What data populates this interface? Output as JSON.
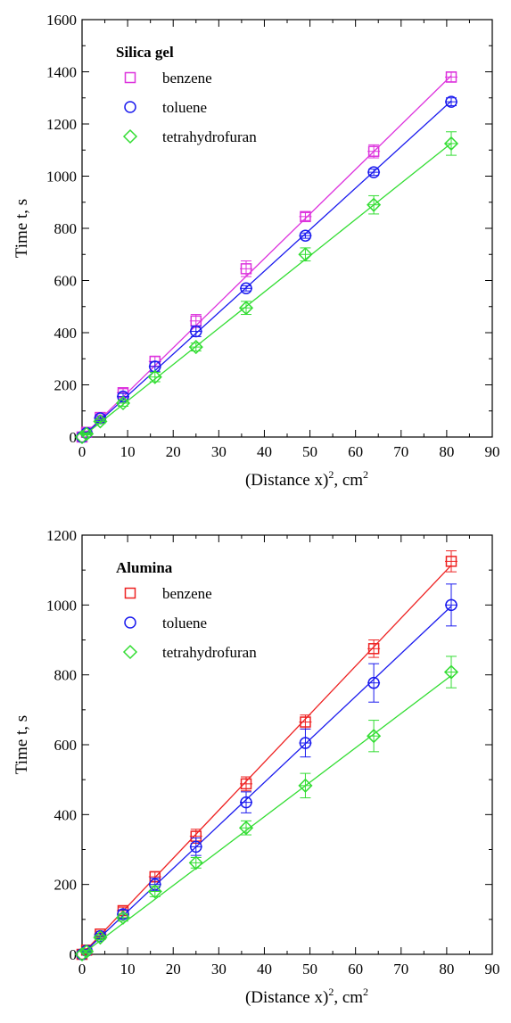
{
  "chart_data": [
    {
      "type": "scatter",
      "title": "",
      "panel_label": "Silica gel",
      "xlabel": "(Distance x)",
      "xlabel_sup": "2",
      "xlabel_unit": ", cm",
      "xlabel_unit_sup": "2",
      "ylabel": "Time t, s",
      "xlim": [
        0,
        90
      ],
      "ylim": [
        0,
        1600
      ],
      "xticks": [
        0,
        10,
        20,
        30,
        40,
        50,
        60,
        70,
        80,
        90
      ],
      "yticks": [
        0,
        200,
        400,
        600,
        800,
        1000,
        1200,
        1400,
        1600
      ],
      "x": [
        0,
        1,
        4,
        9,
        16,
        25,
        36,
        49,
        64,
        81
      ],
      "legend_position": "top-left",
      "series": [
        {
          "name": "benzene",
          "marker": "square",
          "color": "#dd33dd",
          "values": [
            0,
            18,
            75,
            170,
            290,
            445,
            645,
            845,
            1095,
            1380
          ],
          "errors": [
            0,
            5,
            10,
            15,
            20,
            25,
            30,
            15,
            25,
            20
          ],
          "fit_slope": 17.1
        },
        {
          "name": "toluene",
          "marker": "circle",
          "color": "#1a1aee",
          "values": [
            0,
            15,
            72,
            155,
            270,
            405,
            570,
            772,
            1015,
            1285
          ],
          "errors": [
            0,
            4,
            8,
            12,
            18,
            20,
            10,
            10,
            12,
            15
          ],
          "fit_slope": 15.9
        },
        {
          "name": "tetrahydrofuran",
          "marker": "diamond",
          "color": "#33dd33",
          "values": [
            0,
            12,
            60,
            130,
            230,
            345,
            495,
            700,
            890,
            1125
          ],
          "errors": [
            0,
            4,
            8,
            12,
            18,
            15,
            25,
            25,
            35,
            45
          ],
          "fit_slope": 13.9
        }
      ]
    },
    {
      "type": "scatter",
      "title": "",
      "panel_label": "Alumina",
      "xlabel": "(Distance x)",
      "xlabel_sup": "2",
      "xlabel_unit": ", cm",
      "xlabel_unit_sup": "2",
      "ylabel": "Time t, s",
      "xlim": [
        0,
        90
      ],
      "ylim": [
        0,
        1200
      ],
      "xticks": [
        0,
        10,
        20,
        30,
        40,
        50,
        60,
        70,
        80,
        90
      ],
      "yticks": [
        0,
        200,
        400,
        600,
        800,
        1000,
        1200
      ],
      "x": [
        0,
        1,
        4,
        9,
        16,
        25,
        36,
        49,
        64,
        81
      ],
      "legend_position": "top-left",
      "series": [
        {
          "name": "benzene",
          "marker": "square",
          "color": "#ee2222",
          "values": [
            0,
            12,
            58,
            125,
            222,
            338,
            488,
            665,
            875,
            1125
          ],
          "errors": [
            0,
            4,
            8,
            10,
            15,
            20,
            20,
            20,
            25,
            30
          ],
          "fit_slope": 13.75
        },
        {
          "name": "toluene",
          "marker": "circle",
          "color": "#1a1aee",
          "values": [
            0,
            10,
            52,
            115,
            200,
            308,
            435,
            605,
            777,
            1000
          ],
          "errors": [
            0,
            4,
            8,
            12,
            18,
            25,
            30,
            40,
            55,
            60
          ],
          "fit_slope": 12.3
        },
        {
          "name": "tetrahydrofuran",
          "marker": "diamond",
          "color": "#33dd33",
          "values": [
            0,
            8,
            48,
            105,
            180,
            262,
            362,
            483,
            625,
            808
          ],
          "errors": [
            0,
            4,
            6,
            10,
            15,
            15,
            20,
            35,
            45,
            45
          ],
          "fit_slope": 9.85
        }
      ]
    }
  ]
}
